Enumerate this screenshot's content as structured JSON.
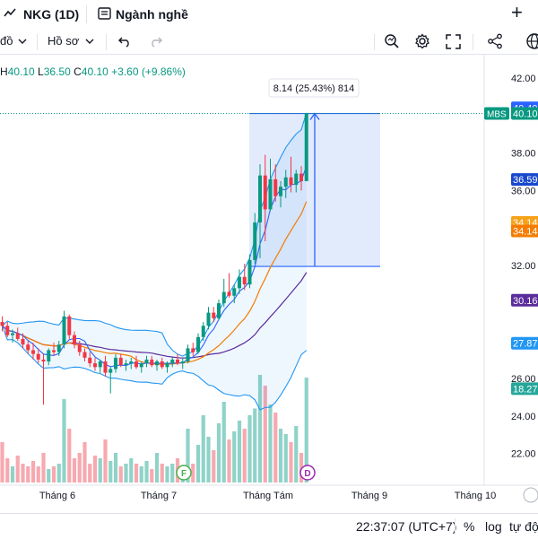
{
  "header": {
    "symbol": "NKG (1D)",
    "industry_label": "Ngành nghề",
    "add_label": "+"
  },
  "toolbar": {
    "indicators_partial": "đồ",
    "profile_label": "Hồ sơ",
    "undo_icon": "undo-icon",
    "redo_icon": "redo-icon",
    "search_icon": "zoom-search-icon",
    "settings_icon": "gear-icon",
    "fullscreen_icon": "fullscreen-icon",
    "share_icon": "share-icon"
  },
  "ohlc": {
    "h_label": "H",
    "h": "40.10",
    "l_label": "L",
    "l": "36.50",
    "c_label": "C",
    "c": "40.10",
    "change": "+3.60 (+9.86%)"
  },
  "measure": {
    "label": "8.14 (25.43%) 814",
    "from": 31.96,
    "to": 40.1
  },
  "price_axis": {
    "ticks": [
      "42.00",
      "38.00",
      "36.00",
      "32.00",
      "26.00",
      "24.00",
      "22.00"
    ],
    "tick_values": [
      42,
      38,
      36,
      32,
      26,
      24,
      22
    ],
    "badges": [
      {
        "text": "40.40",
        "value": 40.4,
        "color": "#2962ff"
      },
      {
        "text": "40.10",
        "value": 40.1,
        "color": "#089981",
        "tag": "MBS"
      },
      {
        "text": "36.59",
        "value": 36.59,
        "color": "#1848cc"
      },
      {
        "text": "34.14",
        "value": 34.3,
        "color": "#f7a21b"
      },
      {
        "text": "34.14",
        "value": 33.85,
        "color": "#f57c00"
      },
      {
        "text": "30.16",
        "value": 30.16,
        "color": "#5b2c9b"
      },
      {
        "text": "27.87",
        "value": 27.87,
        "color": "#2196f3"
      },
      {
        "text": "18.27",
        "value": 25.45,
        "color": "#26a69a"
      }
    ]
  },
  "time_axis": {
    "labels": [
      "Tháng 6",
      "Tháng 7",
      "Tháng Tám",
      "Tháng 9",
      "Tháng 10"
    ]
  },
  "markers": {
    "f": "F",
    "d": "D"
  },
  "status": {
    "time": "22:37:07 (UTC+7)",
    "percent": "%",
    "log": "log",
    "auto": "tự độn"
  },
  "colors": {
    "up": "#089981",
    "down": "#f23645",
    "vol_up": "#8fd3c8",
    "vol_down": "#f7a9b0",
    "ma_fast": "#2962ff",
    "ma_orange": "#f57c00",
    "ma_purple": "#5b2c9b",
    "bb": "#2196f3",
    "measure_fill": "#dbe6fb",
    "measure_line": "#2962ff"
  },
  "chart_data": {
    "type": "candlestick",
    "candles": [
      [
        29.0,
        29.3,
        28.5,
        28.8
      ],
      [
        28.8,
        29.0,
        28.2,
        28.3
      ],
      [
        28.3,
        28.6,
        27.9,
        28.4
      ],
      [
        28.4,
        28.7,
        28.0,
        28.1
      ],
      [
        28.1,
        28.4,
        27.6,
        27.8
      ],
      [
        27.8,
        28.0,
        27.3,
        27.5
      ],
      [
        27.5,
        27.9,
        27.0,
        27.3
      ],
      [
        27.3,
        27.6,
        26.8,
        27.0
      ],
      [
        27.0,
        27.3,
        24.6,
        26.9
      ],
      [
        26.9,
        27.6,
        26.7,
        27.5
      ],
      [
        27.5,
        27.9,
        27.2,
        27.4
      ],
      [
        27.4,
        28.0,
        27.2,
        27.8
      ],
      [
        27.8,
        29.6,
        27.6,
        29.3
      ],
      [
        29.3,
        29.4,
        28.1,
        28.3
      ],
      [
        28.3,
        28.5,
        27.6,
        27.8
      ],
      [
        27.8,
        28.0,
        27.2,
        27.4
      ],
      [
        27.4,
        27.6,
        26.9,
        27.1
      ],
      [
        27.1,
        27.4,
        26.6,
        26.8
      ],
      [
        26.8,
        27.1,
        26.4,
        26.6
      ],
      [
        26.6,
        27.0,
        26.3,
        26.9
      ],
      [
        26.9,
        27.2,
        26.1,
        26.3
      ],
      [
        26.3,
        26.6,
        25.2,
        26.5
      ],
      [
        26.5,
        27.3,
        26.3,
        27.1
      ],
      [
        27.1,
        27.3,
        26.6,
        26.7
      ],
      [
        26.7,
        27.0,
        26.4,
        26.8
      ],
      [
        26.8,
        27.1,
        26.5,
        26.9
      ],
      [
        26.9,
        27.2,
        26.5,
        26.6
      ],
      [
        26.6,
        26.9,
        26.3,
        26.8
      ],
      [
        26.8,
        27.2,
        26.6,
        27.0
      ],
      [
        27.0,
        27.2,
        26.6,
        26.7
      ],
      [
        26.7,
        27.0,
        26.4,
        26.9
      ],
      [
        26.9,
        27.1,
        26.5,
        26.6
      ],
      [
        26.6,
        26.9,
        26.3,
        26.8
      ],
      [
        26.8,
        27.1,
        26.6,
        27.0
      ],
      [
        27.0,
        27.3,
        26.7,
        26.8
      ],
      [
        26.8,
        27.1,
        26.5,
        26.9
      ],
      [
        26.9,
        27.8,
        26.8,
        27.6
      ],
      [
        27.6,
        27.9,
        27.2,
        27.4
      ],
      [
        27.4,
        28.4,
        27.3,
        28.2
      ],
      [
        28.2,
        29.0,
        28.0,
        28.8
      ],
      [
        28.8,
        29.8,
        28.6,
        29.5
      ],
      [
        29.5,
        29.8,
        29.0,
        29.2
      ],
      [
        29.2,
        30.2,
        29.1,
        30.0
      ],
      [
        30.0,
        31.3,
        29.8,
        30.6
      ],
      [
        30.6,
        31.6,
        30.3,
        30.4
      ],
      [
        30.4,
        31.0,
        30.0,
        30.8
      ],
      [
        30.8,
        31.8,
        30.5,
        31.4
      ],
      [
        31.4,
        32.1,
        30.7,
        31.0
      ],
      [
        31.0,
        32.6,
        30.8,
        32.3
      ],
      [
        32.3,
        34.8,
        32.1,
        34.3
      ],
      [
        34.3,
        37.4,
        32.4,
        36.8
      ],
      [
        36.8,
        37.9,
        33.3,
        35.0
      ],
      [
        35.0,
        37.7,
        34.9,
        36.6
      ],
      [
        36.6,
        37.4,
        35.4,
        35.7
      ],
      [
        35.7,
        36.5,
        35.1,
        36.2
      ],
      [
        36.2,
        37.1,
        35.6,
        36.7
      ],
      [
        36.7,
        37.8,
        35.9,
        36.3
      ],
      [
        36.3,
        37.1,
        35.9,
        36.9
      ],
      [
        36.9,
        37.3,
        36.0,
        36.5
      ],
      [
        36.5,
        40.1,
        36.5,
        40.1
      ]
    ],
    "volume": [
      0.3,
      0.18,
      0.12,
      0.2,
      0.14,
      0.12,
      0.16,
      0.12,
      0.22,
      0.1,
      0.12,
      0.14,
      0.62,
      0.4,
      0.18,
      0.22,
      0.3,
      0.14,
      0.2,
      0.18,
      0.32,
      0.16,
      0.22,
      0.12,
      0.14,
      0.18,
      0.14,
      0.12,
      0.16,
      0.1,
      0.22,
      0.14,
      0.12,
      0.14,
      0.18,
      0.12,
      0.4,
      0.14,
      0.28,
      0.5,
      0.34,
      0.24,
      0.44,
      0.6,
      0.32,
      0.38,
      0.46,
      0.4,
      0.5,
      0.55,
      0.8,
      0.72,
      0.58,
      0.52,
      0.4,
      0.36,
      0.3,
      0.42,
      0.22,
      0.78
    ],
    "time_labels": [
      "Tháng 6",
      "Tháng 7",
      "Tháng Tám",
      "Tháng 9",
      "Tháng 10"
    ],
    "price_range": [
      20.6,
      42.8
    ]
  }
}
